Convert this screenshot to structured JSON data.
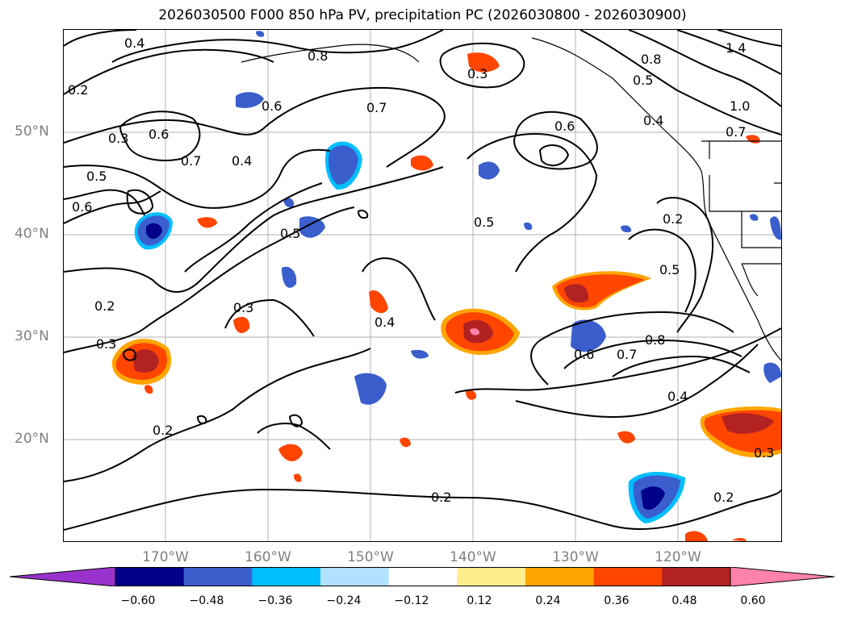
{
  "title": "2026030500 F000 850 hPa PV, precipitation PC (2026030800 - 2026030900)",
  "lat_labels": [
    "50°N",
    "40°N",
    "30°N",
    "20°N"
  ],
  "lon_labels": [
    "170°W",
    "160°W",
    "150°W",
    "140°W",
    "130°W",
    "120°W"
  ],
  "colorbar": {
    "ticks": [
      "−0.60",
      "−0.48",
      "−0.36",
      "−0.24",
      "−0.12",
      "0.12",
      "0.24",
      "0.36",
      "0.48",
      "0.60"
    ],
    "colors": [
      "#9932cc",
      "#00008b",
      "#3a5fcd",
      "#00bfff",
      "#b0e2ff",
      "#ffffff",
      "#ffec8b",
      "#ffa500",
      "#ff4500",
      "#b22222",
      "#ff82ab"
    ]
  },
  "contour_labels": [
    "0.4",
    "0.2",
    "0.3",
    "0.6",
    "0.7",
    "0.5",
    "0.6",
    "0.7",
    "0.4",
    "0.5",
    "0.3",
    "0.2",
    "0.3",
    "0.2",
    "0.4",
    "0.5",
    "0.6",
    "0.7",
    "0.8",
    "0.4",
    "0.2",
    "0.3",
    "0.8",
    "0.5",
    "0.4",
    "1.0",
    "1.4",
    "0.6",
    "0.3",
    "0.8",
    "0.2",
    "0.5",
    "0.6",
    "0.7",
    "0.2"
  ]
}
